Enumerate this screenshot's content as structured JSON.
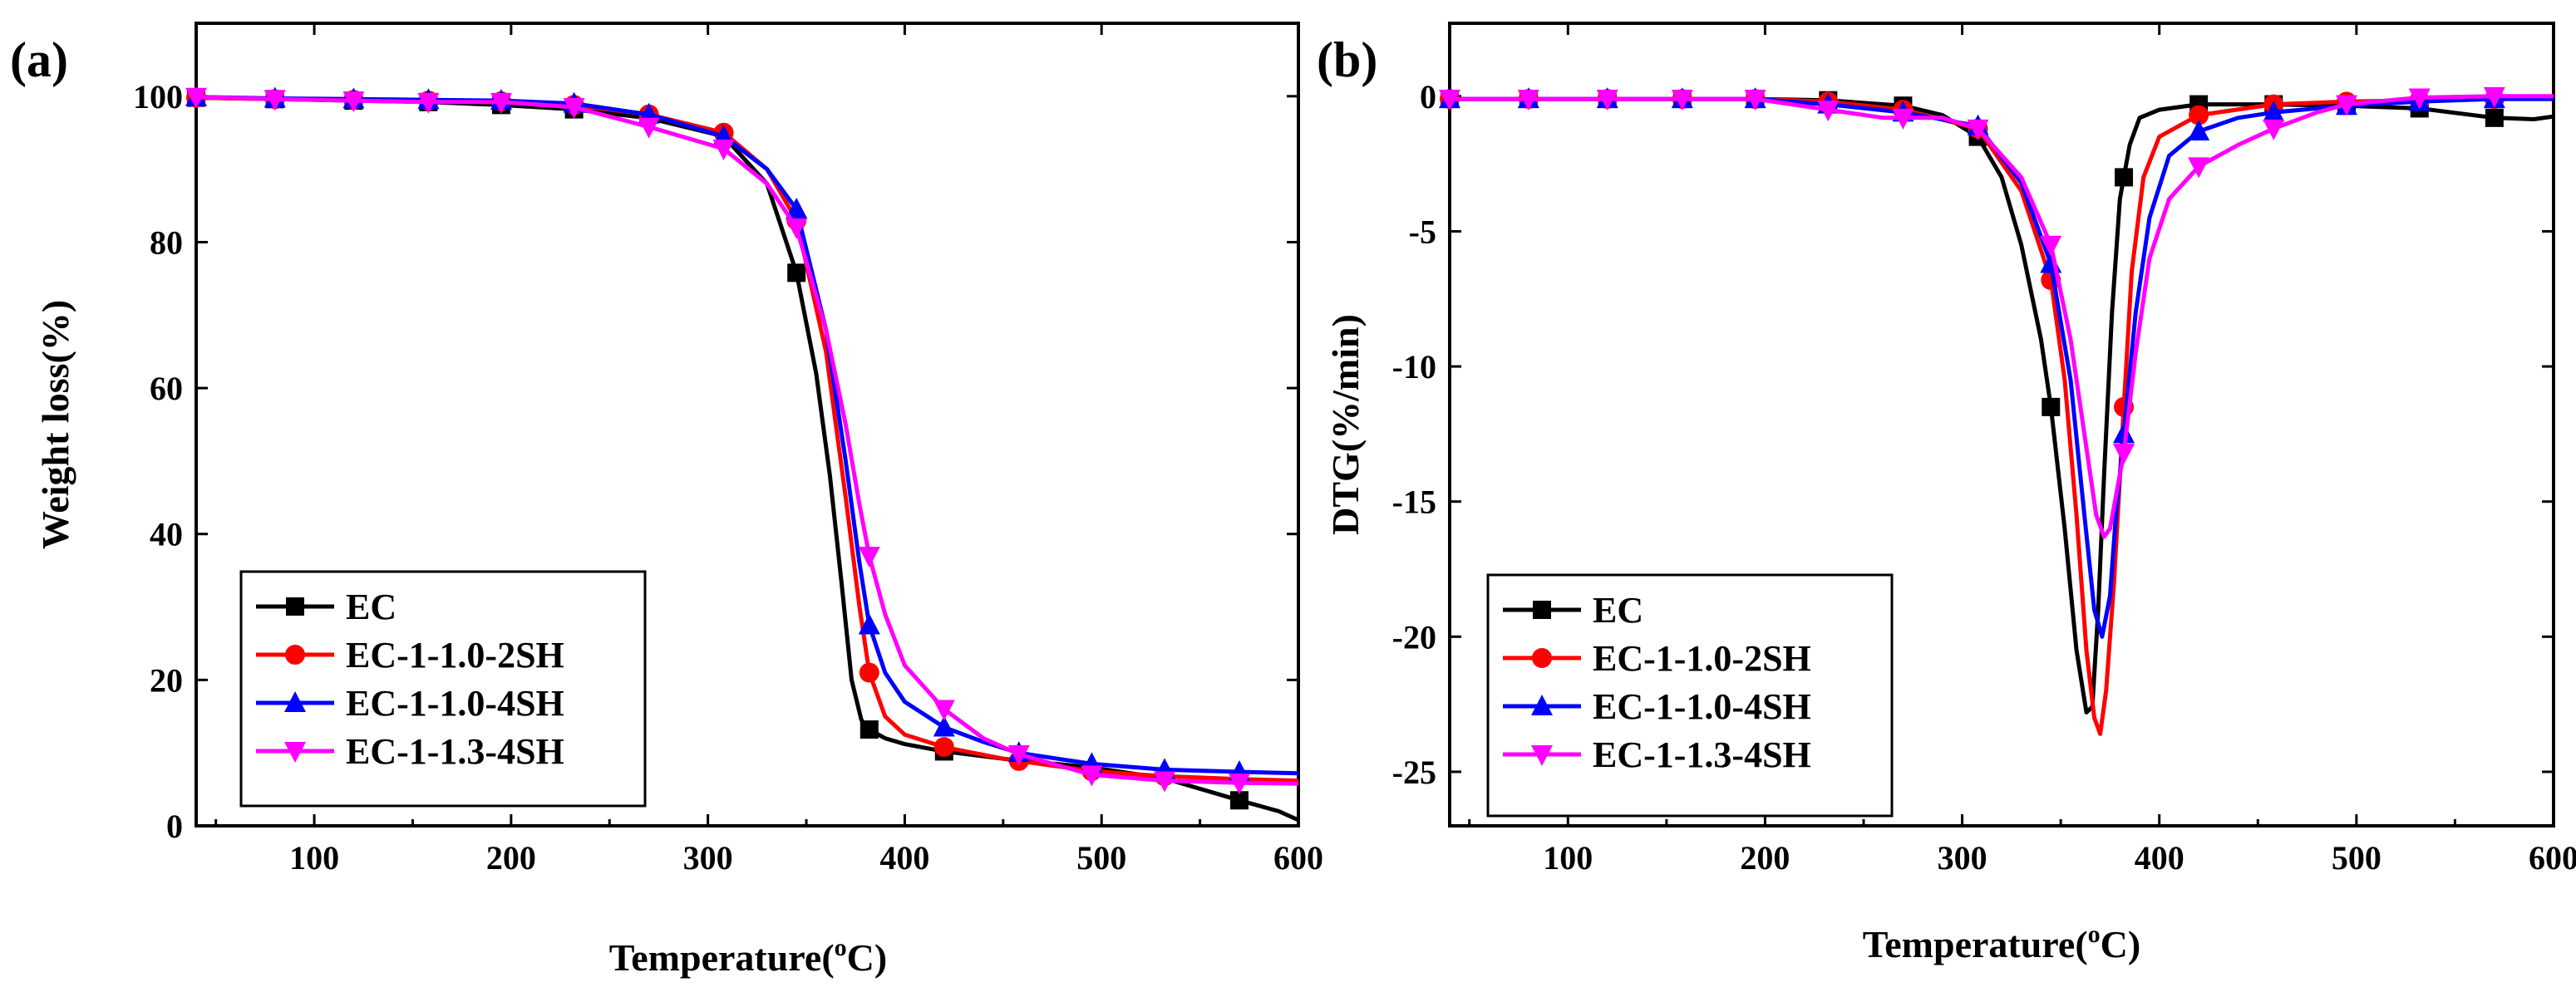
{
  "chart_data": [
    {
      "type": "line",
      "panel_label": "(a)",
      "xlabel": "Temperature",
      "xlabel_unit_sup": "o",
      "xlabel_unit": "C)",
      "ylabel": "Weight loss(%)",
      "xlim": [
        40,
        600
      ],
      "ylim": [
        0,
        110
      ],
      "xticks": [
        100,
        200,
        300,
        400,
        500,
        600
      ],
      "yticks": [
        0,
        20,
        40,
        60,
        80,
        100
      ],
      "legend_position": "bottom-left",
      "series": [
        {
          "name": "EC",
          "color": "#000000",
          "marker": "square",
          "x": [
            40,
            80,
            120,
            158,
            195,
            232,
            270,
            308,
            330,
            345,
            355,
            362,
            368,
            373,
            378,
            382,
            390,
            400,
            420,
            450,
            495,
            532,
            570,
            590,
            600
          ],
          "y": [
            99.8,
            99.6,
            99.4,
            99.2,
            98.8,
            98.2,
            97.0,
            94.5,
            88.0,
            75.8,
            62.0,
            48.0,
            33.0,
            20.0,
            14.5,
            13.2,
            12.0,
            11.2,
            10.2,
            9.2,
            8.0,
            6.5,
            3.5,
            2.0,
            0.8
          ],
          "marker_x": [
            40,
            80,
            120,
            158,
            195,
            232,
            345,
            382,
            420,
            570
          ]
        },
        {
          "name": "EC-1-1.0-2SH",
          "color": "#ff0000",
          "marker": "circle",
          "x": [
            40,
            80,
            120,
            158,
            195,
            232,
            270,
            308,
            330,
            345,
            360,
            370,
            377,
            382,
            390,
            400,
            420,
            450,
            495,
            532,
            570,
            600
          ],
          "y": [
            99.8,
            99.6,
            99.5,
            99.4,
            99.3,
            98.8,
            97.5,
            95.0,
            90.0,
            83.0,
            65.0,
            45.0,
            30.0,
            21.0,
            15.0,
            12.5,
            10.8,
            9.2,
            7.5,
            6.8,
            6.4,
            6.2
          ],
          "marker_x": [
            40,
            80,
            120,
            158,
            195,
            232,
            270,
            308,
            345,
            382,
            420,
            458,
            495,
            532
          ]
        },
        {
          "name": "EC-1-1.0-4SH",
          "color": "#0000ff",
          "marker": "triangle-up",
          "x": [
            40,
            80,
            120,
            158,
            195,
            232,
            270,
            308,
            330,
            345,
            360,
            370,
            377,
            382,
            390,
            400,
            420,
            440,
            458,
            495,
            532,
            570,
            600
          ],
          "y": [
            99.9,
            99.7,
            99.6,
            99.5,
            99.4,
            99.0,
            97.5,
            94.5,
            90.0,
            84.5,
            68.0,
            50.0,
            36.0,
            27.5,
            21.0,
            17.0,
            13.5,
            11.5,
            10.0,
            8.5,
            7.7,
            7.4,
            7.2
          ],
          "marker_x": [
            40,
            80,
            120,
            158,
            195,
            232,
            270,
            308,
            345,
            382,
            420,
            458,
            495,
            532,
            570
          ]
        },
        {
          "name": "EC-1-1.3-4SH",
          "color": "#ff00ff",
          "marker": "triangle-down",
          "x": [
            40,
            80,
            120,
            158,
            195,
            232,
            270,
            308,
            330,
            345,
            360,
            370,
            377,
            382,
            390,
            400,
            420,
            440,
            458,
            495,
            532,
            570,
            600
          ],
          "y": [
            99.9,
            99.6,
            99.4,
            99.2,
            99.2,
            98.5,
            95.8,
            92.8,
            88.0,
            82.0,
            68.0,
            55.0,
            44.0,
            37.0,
            29.0,
            22.0,
            16.0,
            12.0,
            9.8,
            7.0,
            6.2,
            5.9,
            5.8
          ],
          "marker_x": [
            40,
            80,
            120,
            158,
            195,
            232,
            270,
            308,
            345,
            382,
            420,
            458,
            495,
            532,
            570
          ]
        }
      ]
    },
    {
      "type": "line",
      "panel_label": "(b)",
      "xlabel": "Temperature",
      "xlabel_unit_sup": "o",
      "xlabel_unit": "C)",
      "ylabel": "DTG(%/min)",
      "xlim": [
        40,
        600
      ],
      "ylim": [
        -27,
        2.7
      ],
      "xticks": [
        100,
        200,
        300,
        400,
        500,
        600
      ],
      "yticks": [
        0,
        -5,
        -10,
        -15,
        -20,
        -25
      ],
      "legend_position": "bottom-left",
      "series": [
        {
          "name": "EC",
          "color": "#000000",
          "marker": "square",
          "x": [
            40,
            80,
            120,
            158,
            195,
            232,
            260,
            270,
            290,
            308,
            320,
            330,
            340,
            345,
            352,
            358,
            363,
            366,
            369,
            372,
            376,
            380,
            385,
            390,
            400,
            420,
            458,
            495,
            532,
            570,
            590,
            600
          ],
          "y": [
            -0.1,
            -0.1,
            -0.1,
            -0.1,
            -0.1,
            -0.15,
            -0.3,
            -0.35,
            -0.7,
            -1.5,
            -3.0,
            -5.5,
            -9.0,
            -11.5,
            -16.0,
            -20.5,
            -22.8,
            -22.6,
            -19.0,
            -14.0,
            -8.0,
            -3.8,
            -1.8,
            -0.8,
            -0.5,
            -0.3,
            -0.3,
            -0.35,
            -0.45,
            -0.8,
            -0.85,
            -0.75
          ],
          "marker_x": [
            40,
            80,
            120,
            158,
            195,
            232,
            270,
            308,
            345,
            382,
            420,
            458,
            495,
            532,
            570
          ]
        },
        {
          "name": "EC-1-1.0-2SH",
          "color": "#ff0000",
          "marker": "circle",
          "x": [
            40,
            80,
            120,
            158,
            195,
            232,
            270,
            308,
            330,
            345,
            352,
            358,
            363,
            367,
            370,
            373,
            377,
            382,
            386,
            392,
            400,
            420,
            458,
            495,
            532,
            570,
            600
          ],
          "y": [
            -0.1,
            -0.1,
            -0.1,
            -0.1,
            -0.1,
            -0.2,
            -0.5,
            -1.2,
            -3.5,
            -6.8,
            -10.5,
            -15.5,
            -20.5,
            -23.0,
            -23.6,
            -22.0,
            -18.0,
            -11.5,
            -6.5,
            -3.0,
            -1.5,
            -0.7,
            -0.3,
            -0.2,
            -0.15,
            -0.1,
            -0.1
          ],
          "marker_x": [
            40,
            80,
            120,
            158,
            195,
            232,
            270,
            308,
            345,
            382,
            420,
            458,
            495,
            532,
            570
          ]
        },
        {
          "name": "EC-1-1.0-4SH",
          "color": "#0000ff",
          "marker": "triangle-up",
          "x": [
            40,
            80,
            120,
            158,
            195,
            232,
            270,
            308,
            330,
            345,
            355,
            362,
            367,
            371,
            375,
            378,
            382,
            388,
            395,
            405,
            420,
            440,
            458,
            495,
            532,
            570,
            600
          ],
          "y": [
            -0.1,
            -0.1,
            -0.1,
            -0.1,
            -0.1,
            -0.3,
            -0.6,
            -1.1,
            -3.2,
            -6.2,
            -10.5,
            -15.5,
            -19.0,
            -20.0,
            -18.5,
            -15.5,
            -12.5,
            -8.0,
            -4.5,
            -2.2,
            -1.3,
            -0.8,
            -0.6,
            -0.35,
            -0.2,
            -0.1,
            -0.1
          ],
          "marker_x": [
            40,
            80,
            120,
            158,
            195,
            232,
            270,
            308,
            345,
            382,
            420,
            458,
            495,
            532,
            570
          ]
        },
        {
          "name": "EC-1-1.3-4SH",
          "color": "#ff00ff",
          "marker": "triangle-down",
          "x": [
            40,
            80,
            120,
            158,
            195,
            232,
            260,
            270,
            290,
            308,
            330,
            345,
            355,
            362,
            368,
            372,
            375,
            378,
            382,
            388,
            395,
            405,
            420,
            440,
            458,
            480,
            495,
            532,
            570,
            600
          ],
          "y": [
            -0.1,
            -0.1,
            -0.1,
            -0.1,
            -0.1,
            -0.5,
            -0.8,
            -0.8,
            -0.8,
            -1.2,
            -3.0,
            -5.5,
            -9.0,
            -12.5,
            -15.5,
            -16.3,
            -16.0,
            -14.8,
            -13.2,
            -9.5,
            -6.0,
            -3.8,
            -2.6,
            -1.8,
            -1.2,
            -0.6,
            -0.3,
            -0.05,
            0.0,
            0.0
          ],
          "marker_x": [
            40,
            80,
            120,
            158,
            195,
            232,
            270,
            308,
            345,
            382,
            420,
            458,
            495,
            532,
            570
          ]
        }
      ]
    }
  ]
}
